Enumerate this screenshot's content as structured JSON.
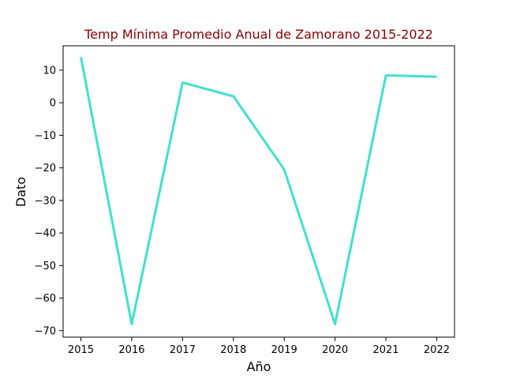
{
  "chart_data": {
    "type": "line",
    "title": "Temp Mínima Promedio Anual de Zamorano 2015-2022",
    "xlabel": "Año",
    "ylabel": "Dato",
    "x": [
      2015,
      2016,
      2017,
      2018,
      2019,
      2020,
      2021,
      2022
    ],
    "series": [
      {
        "values": [
          14.0,
          -68.0,
          6.2,
          2.0,
          -20.5,
          -68.0,
          8.4,
          8.0
        ]
      }
    ],
    "xlim": [
      2014.65,
      2022.35
    ],
    "ylim": [
      -72.0,
      17.5
    ],
    "xticks": [
      2015,
      2016,
      2017,
      2018,
      2019,
      2020,
      2021,
      2022
    ],
    "xtick_labels": [
      "2015",
      "2016",
      "2017",
      "2018",
      "2019",
      "2020",
      "2021",
      "2022"
    ],
    "yticks": [
      10,
      0,
      -10,
      -20,
      -30,
      -40,
      -50,
      -60,
      -70
    ],
    "ytick_labels": [
      "10",
      "0",
      "−10",
      "−20",
      "−30",
      "−40",
      "−50",
      "−60",
      "−70"
    ],
    "grid": false,
    "legend": false,
    "colors": {
      "line": "#40e0d0",
      "title": "#8b0000",
      "axes": "#000000"
    }
  }
}
